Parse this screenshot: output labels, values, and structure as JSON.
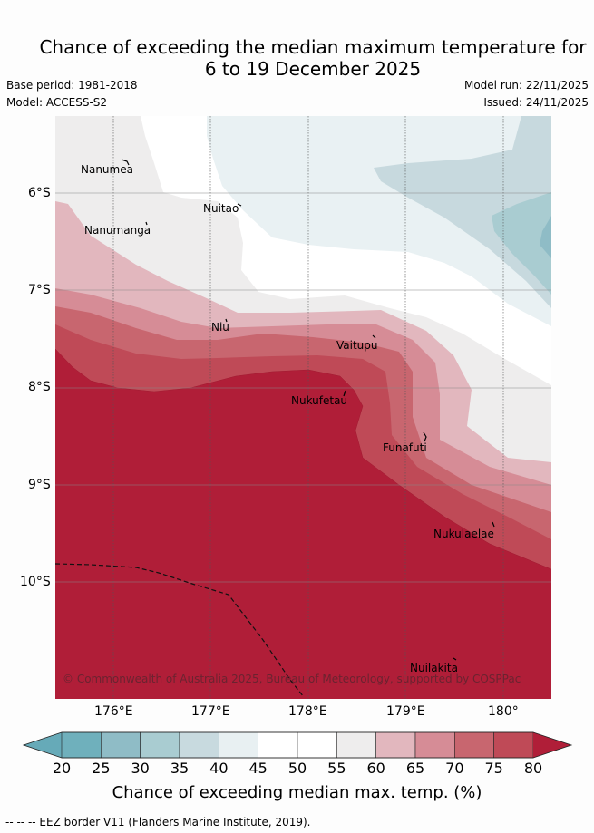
{
  "title": {
    "line1": "Chance of exceeding the median maximum temperature for",
    "line2": "6 to 19 December 2025"
  },
  "meta": {
    "base_period": "Base period: 1981-2018",
    "model": "Model: ACCESS-S2",
    "model_run": "Model run: 22/11/2025",
    "issued": "Issued: 24/11/2025"
  },
  "axes": {
    "lat_labels": [
      "6°S",
      "7°S",
      "8°S",
      "9°S",
      "10°S"
    ],
    "lon_labels": [
      "176°E",
      "177°E",
      "178°E",
      "179°E",
      "180°"
    ]
  },
  "places": [
    {
      "name": "Nanumea",
      "lon": 176.07,
      "lat": -5.66
    },
    {
      "name": "Nuitao",
      "lon": 177.34,
      "lat": -6.11
    },
    {
      "name": "Nanumanga",
      "lon": 176.32,
      "lat": -6.29
    },
    {
      "name": "Niu",
      "lon": 177.17,
      "lat": -7.29
    },
    {
      "name": "Vaitupu",
      "lon": 178.68,
      "lat": -7.48
    },
    {
      "name": "Nukufetau",
      "lon": 178.38,
      "lat": -8.02
    },
    {
      "name": "Funafuti",
      "lon": 179.19,
      "lat": -8.52
    },
    {
      "name": "Nukulaelae",
      "lon": 179.84,
      "lat": -9.38
    },
    {
      "name": "Nuilakita",
      "lon": 179.48,
      "lat": -10.79
    }
  ],
  "copyright": "© Commonwealth of Australia 2025, Bureau of Meteorology, supported by COSPPac",
  "colorbar": {
    "ticks": [
      "20",
      "25",
      "30",
      "35",
      "40",
      "45",
      "50",
      "55",
      "60",
      "65",
      "70",
      "75",
      "80"
    ],
    "colors": [
      "#66aab8",
      "#6fb0bc",
      "#8fbcc6",
      "#a9ccd1",
      "#c8dadf",
      "#e8f0f2",
      "#ffffff",
      "#ffffff",
      "#eeeded",
      "#e2b7be",
      "#d68c96",
      "#c8666f",
      "#bf4a57",
      "#b01e38"
    ],
    "label": "Chance of exceeding median max. temp. (%)"
  },
  "eez_note": "--  --  -- EEZ border V11 (Flanders Marine Institute, 2019)."
}
